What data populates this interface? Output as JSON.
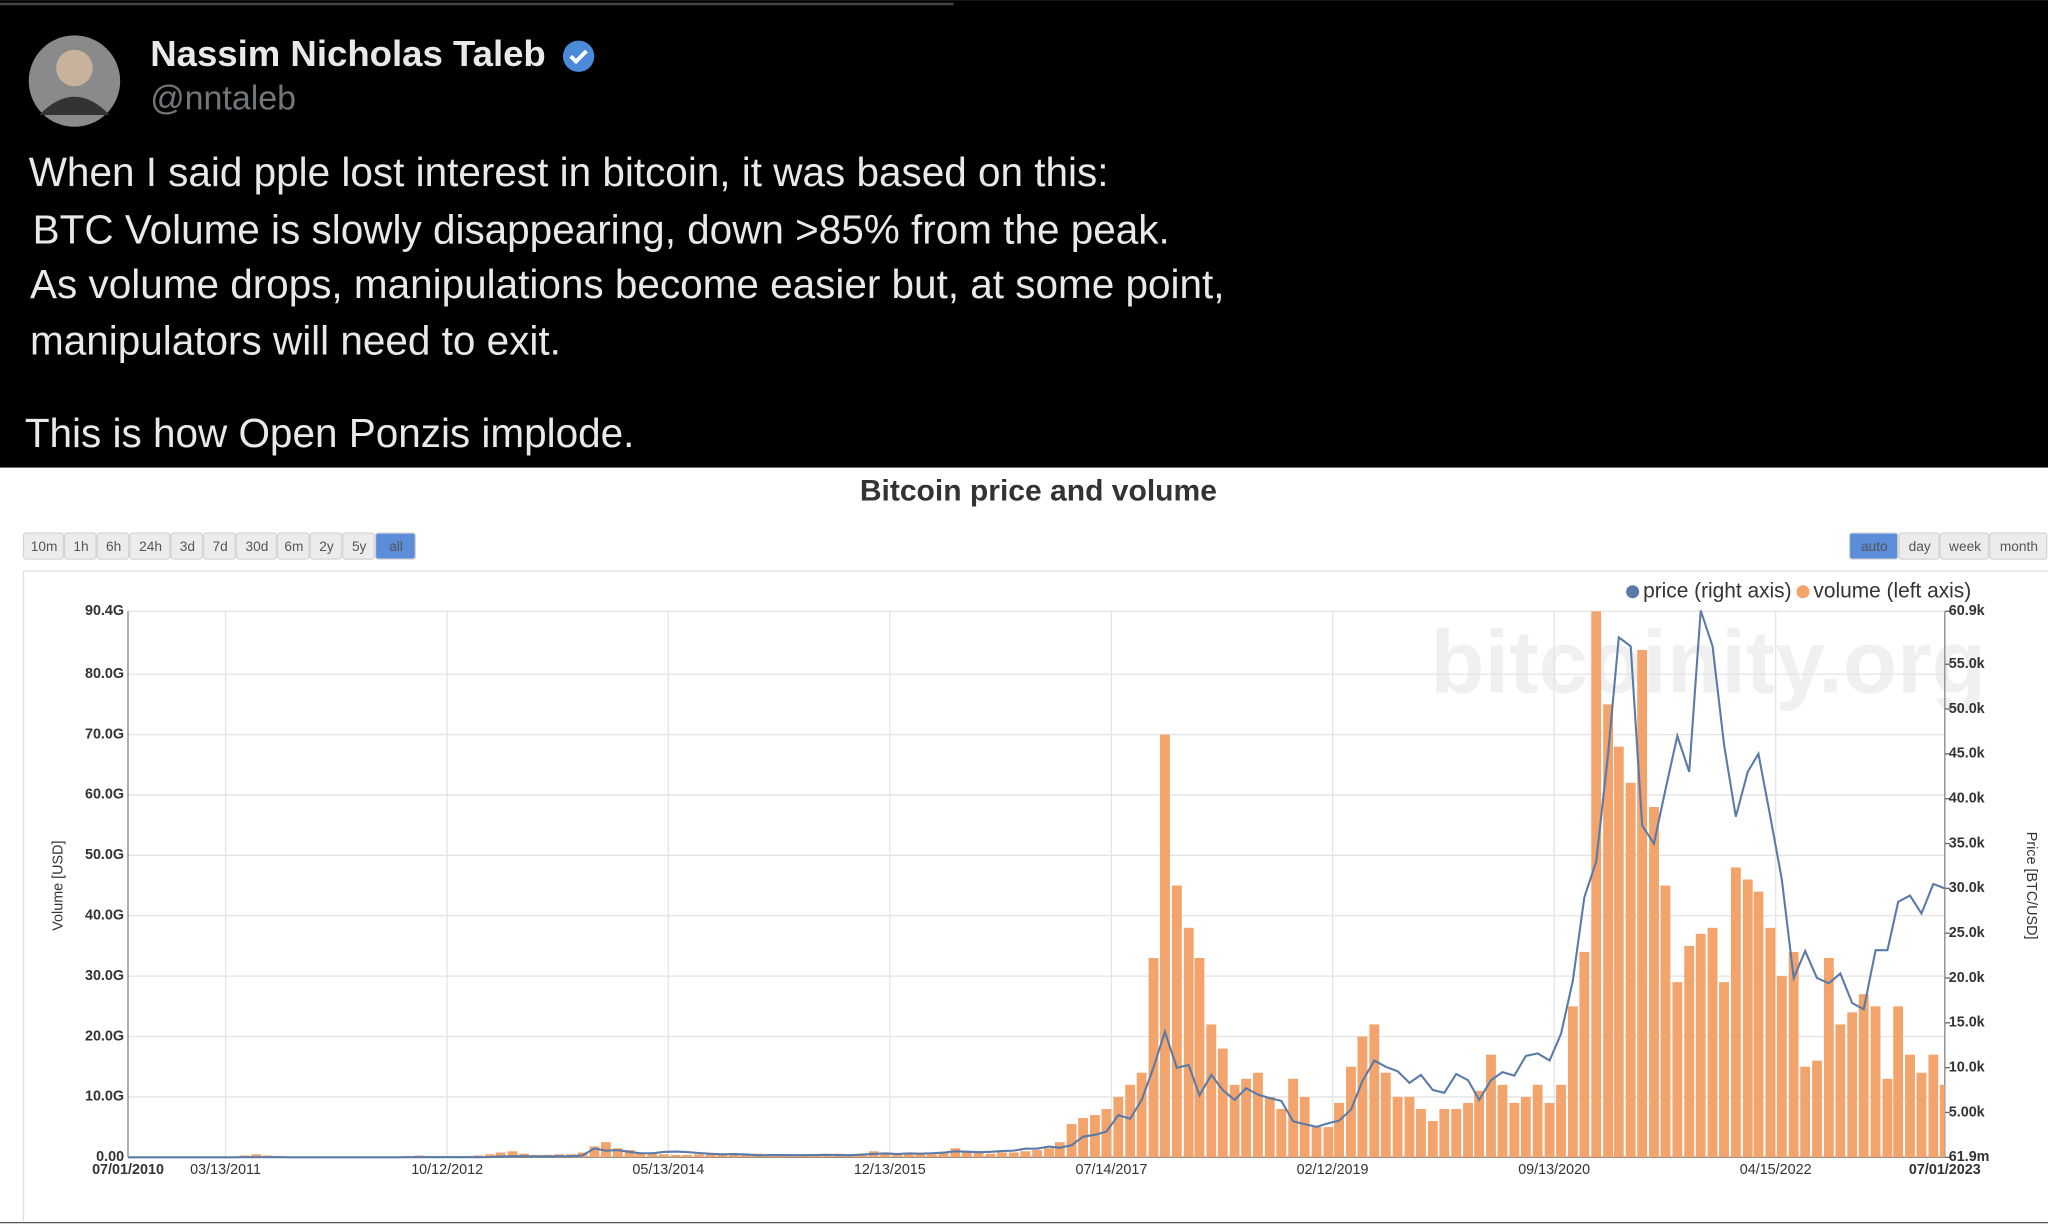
{
  "tweet": {
    "name": "Nassim Nicholas Taleb",
    "handle": "@nntaleb",
    "text": [
      "When I said pple lost interest in bitcoin, it was based on this:",
      "BTC Volume is slowly  disappearing, down >85% from the peak.",
      "As volume drops, manipulations become easier but, at some point,",
      "manipulators will need to exit.",
      "This is how Open Ponzis implode."
    ]
  },
  "chart_data": {
    "type": "bar",
    "title": "Bitcoin price and volume",
    "watermark": "bitcoinity.org",
    "range_buttons": [
      "10m",
      "1h",
      "6h",
      "24h",
      "3d",
      "7d",
      "30d",
      "6m",
      "2y",
      "5y",
      "all"
    ],
    "range_selected": 10,
    "period_buttons": [
      "auto",
      "day",
      "week",
      "month"
    ],
    "period_selected": 0,
    "ylabel": "Volume [USD]",
    "y2label": "Price [BTC/USD]",
    "x": [
      "2010-07",
      "2010-08",
      "2010-09",
      "2010-10",
      "2010-11",
      "2010-12",
      "2011-01",
      "2011-02",
      "2011-03",
      "2011-04",
      "2011-05",
      "2011-06",
      "2011-07",
      "2011-08",
      "2011-09",
      "2011-10",
      "2011-11",
      "2011-12",
      "2012-01",
      "2012-02",
      "2012-03",
      "2012-04",
      "2012-05",
      "2012-06",
      "2012-07",
      "2012-08",
      "2012-09",
      "2012-10",
      "2012-11",
      "2012-12",
      "2013-01",
      "2013-02",
      "2013-03",
      "2013-04",
      "2013-05",
      "2013-06",
      "2013-07",
      "2013-08",
      "2013-09",
      "2013-10",
      "2013-11",
      "2013-12",
      "2014-01",
      "2014-02",
      "2014-03",
      "2014-04",
      "2014-05",
      "2014-06",
      "2014-07",
      "2014-08",
      "2014-09",
      "2014-10",
      "2014-11",
      "2014-12",
      "2015-01",
      "2015-02",
      "2015-03",
      "2015-04",
      "2015-05",
      "2015-06",
      "2015-07",
      "2015-08",
      "2015-09",
      "2015-10",
      "2015-11",
      "2015-12",
      "2016-01",
      "2016-02",
      "2016-03",
      "2016-04",
      "2016-05",
      "2016-06",
      "2016-07",
      "2016-08",
      "2016-09",
      "2016-10",
      "2016-11",
      "2016-12",
      "2017-01",
      "2017-02",
      "2017-03",
      "2017-04",
      "2017-05",
      "2017-06",
      "2017-07",
      "2017-08",
      "2017-09",
      "2017-10",
      "2017-11",
      "2017-12",
      "2018-01",
      "2018-02",
      "2018-03",
      "2018-04",
      "2018-05",
      "2018-06",
      "2018-07",
      "2018-08",
      "2018-09",
      "2018-10",
      "2018-11",
      "2018-12",
      "2019-01",
      "2019-02",
      "2019-03",
      "2019-04",
      "2019-05",
      "2019-06",
      "2019-07",
      "2019-08",
      "2019-09",
      "2019-10",
      "2019-11",
      "2019-12",
      "2020-01",
      "2020-02",
      "2020-03",
      "2020-04",
      "2020-05",
      "2020-06",
      "2020-07",
      "2020-08",
      "2020-09",
      "2020-10",
      "2020-11",
      "2020-12",
      "2021-01",
      "2021-02",
      "2021-03",
      "2021-04",
      "2021-05",
      "2021-06",
      "2021-07",
      "2021-08",
      "2021-09",
      "2021-10",
      "2021-11",
      "2021-12",
      "2022-01",
      "2022-02",
      "2022-03",
      "2022-04",
      "2022-05",
      "2022-06",
      "2022-07",
      "2022-08",
      "2022-09",
      "2022-10",
      "2022-11",
      "2022-12",
      "2023-01",
      "2023-02",
      "2023-03",
      "2023-04",
      "2023-05",
      "2023-06",
      "2023-07"
    ],
    "series": [
      {
        "name": "price (right axis)",
        "type": "line",
        "axis": "y2",
        "color": "#5a7aa8",
        "values": [
          0.07,
          0.07,
          0.06,
          0.1,
          0.2,
          0.3,
          0.3,
          0.9,
          0.9,
          0.8,
          8,
          17,
          14,
          10,
          5,
          3,
          3,
          4,
          6,
          5,
          5,
          5,
          5,
          6,
          9,
          10,
          12,
          11,
          12,
          13,
          20,
          30,
          90,
          130,
          120,
          100,
          100,
          110,
          130,
          200,
          1000,
          750,
          800,
          600,
          450,
          450,
          600,
          640,
          580,
          480,
          390,
          340,
          370,
          320,
          220,
          250,
          250,
          230,
          230,
          250,
          280,
          230,
          235,
          300,
          380,
          430,
          370,
          440,
          415,
          450,
          530,
          670,
          620,
          575,
          610,
          700,
          740,
          960,
          970,
          1190,
          1070,
          1350,
          2300,
          2500,
          2870,
          4700,
          4300,
          6400,
          10000,
          14000,
          10000,
          10300,
          6900,
          9200,
          7500,
          6400,
          7700,
          7000,
          6600,
          6300,
          4000,
          3700,
          3400,
          3800,
          4100,
          5300,
          8500,
          10800,
          10100,
          9600,
          8300,
          9200,
          7500,
          7200,
          9300,
          8600,
          6400,
          8600,
          9500,
          9100,
          11300,
          11600,
          10800,
          13800,
          19700,
          29000,
          33000,
          45000,
          58000,
          57000,
          37000,
          35000,
          41000,
          47000,
          43000,
          61000,
          57000,
          46000,
          38000,
          43000,
          45000,
          38000,
          31000,
          20000,
          23000,
          20000,
          19400,
          20500,
          17200,
          16500,
          23100,
          23100,
          28500,
          29200,
          27200,
          30500,
          30000
        ]
      },
      {
        "name": "volume (left axis)",
        "type": "bar",
        "color": "#f2a46c",
        "values": [
          10000000.0,
          10000000.0,
          10000000.0,
          20000000.0,
          30000000.0,
          30000000.0,
          50000000.0,
          100000000.0,
          100000000.0,
          100000000.0,
          300000000.0,
          500000000.0,
          300000000.0,
          200000000.0,
          100000000.0,
          100000000.0,
          100000000.0,
          100000000.0,
          100000000.0,
          100000000.0,
          100000000.0,
          100000000.0,
          100000000.0,
          100000000.0,
          200000000.0,
          300000000.0,
          200000000.0,
          200000000.0,
          200000000.0,
          200000000.0,
          300000000.0,
          500000000.0,
          800000000.0,
          1000000000.0,
          600000000.0,
          400000000.0,
          400000000.0,
          500000000.0,
          500000000.0,
          800000000.0,
          1800000000.0,
          2500000000.0,
          1500000000.0,
          1200000000.0,
          800000000.0,
          600000000.0,
          500000000.0,
          400000000.0,
          400000000.0,
          500000000.0,
          600000000.0,
          500000000.0,
          400000000.0,
          500000000.0,
          600000000.0,
          500000000.0,
          400000000.0,
          400000000.0,
          400000000.0,
          400000000.0,
          400000000.0,
          600000000.0,
          400000000.0,
          500000000.0,
          1000000000.0,
          800000000.0,
          600000000.0,
          600000000.0,
          500000000.0,
          500000000.0,
          700000000.0,
          1500000000.0,
          1000000000.0,
          800000000.0,
          600000000.0,
          800000000.0,
          800000000.0,
          1000000000.0,
          1200000000.0,
          1500000000.0,
          2500000000.0,
          5500000000.0,
          6500000000.0,
          7000000000.0,
          8000000000.0,
          10000000000.0,
          12000000000.0,
          14000000000.0,
          33000000000.0,
          70000000000.0,
          45000000000.0,
          38000000000.0,
          33000000000.0,
          22000000000.0,
          18000000000.0,
          12000000000.0,
          13000000000.0,
          14000000000.0,
          10000000000.0,
          8000000000.0,
          13000000000.0,
          10000000000.0,
          5000000000.0,
          5000000000.0,
          9000000000.0,
          15000000000.0,
          20000000000.0,
          22000000000.0,
          14000000000.0,
          10000000000.0,
          10000000000.0,
          8000000000.0,
          6000000000.0,
          8000000000.0,
          8000000000.0,
          9000000000.0,
          11000000000.0,
          17000000000.0,
          12000000000.0,
          9000000000.0,
          10000000000.0,
          12000000000.0,
          9000000000.0,
          12000000000.0,
          25000000000.0,
          34000000000.0,
          90400000000.0,
          75000000000.0,
          68000000000.0,
          62000000000.0,
          84000000000.0,
          58000000000.0,
          45000000000.0,
          29000000000.0,
          35000000000.0,
          37000000000.0,
          38000000000.0,
          29000000000.0,
          48000000000.0,
          46000000000.0,
          44000000000.0,
          38000000000.0,
          30000000000.0,
          34000000000.0,
          15000000000.0,
          16000000000.0,
          33000000000.0,
          22000000000.0,
          24000000000.0,
          27000000000.0,
          25000000000.0,
          13000000000.0,
          25000000000.0,
          17000000000.0,
          14000000000.0,
          17000000000.0,
          12000000000.0
        ]
      }
    ],
    "xlim": [
      "2010-07-01",
      "2023-07-01"
    ],
    "xticks": [
      {
        "value": "2010-07-01",
        "label": "07/01/2010"
      },
      {
        "value": "2011-03-13",
        "label": "03/13/2011"
      },
      {
        "value": "2012-10-12",
        "label": "10/12/2012"
      },
      {
        "value": "2014-05-13",
        "label": "05/13/2014"
      },
      {
        "value": "2015-12-13",
        "label": "12/13/2015"
      },
      {
        "value": "2017-07-14",
        "label": "07/14/2017"
      },
      {
        "value": "2019-02-12",
        "label": "02/12/2019"
      },
      {
        "value": "2020-09-13",
        "label": "09/13/2020"
      },
      {
        "value": "2022-04-15",
        "label": "04/15/2022"
      },
      {
        "value": "2023-07-01",
        "label": "07/01/2023"
      }
    ],
    "ylim": [
      0,
      90400000000.0
    ],
    "yticks": [
      {
        "value": 0,
        "label": "0.00"
      },
      {
        "value": 10000000000.0,
        "label": "10.0G"
      },
      {
        "value": 20000000000.0,
        "label": "20.0G"
      },
      {
        "value": 30000000000.0,
        "label": "30.0G"
      },
      {
        "value": 40000000000.0,
        "label": "40.0G"
      },
      {
        "value": 50000000000.0,
        "label": "50.0G"
      },
      {
        "value": 60000000000.0,
        "label": "60.0G"
      },
      {
        "value": 70000000000.0,
        "label": "70.0G"
      },
      {
        "value": 80000000000.0,
        "label": "80.0G"
      },
      {
        "value": 90400000000.0,
        "label": "90.4G"
      }
    ],
    "y2lim": [
      0.0619,
      60900
    ],
    "y2ticks": [
      {
        "value": 0.0619,
        "label": "61.9m"
      },
      {
        "value": 5000,
        "label": "5.00k"
      },
      {
        "value": 10000,
        "label": "10.0k"
      },
      {
        "value": 15000,
        "label": "15.0k"
      },
      {
        "value": 20000,
        "label": "20.0k"
      },
      {
        "value": 25000,
        "label": "25.0k"
      },
      {
        "value": 30000,
        "label": "30.0k"
      },
      {
        "value": 35000,
        "label": "35.0k"
      },
      {
        "value": 40000,
        "label": "40.0k"
      },
      {
        "value": 45000,
        "label": "45.0k"
      },
      {
        "value": 50000,
        "label": "50.0k"
      },
      {
        "value": 55000,
        "label": "55.0k"
      },
      {
        "value": 60900,
        "label": "60.9k"
      }
    ],
    "grid": true,
    "legend": "top-right"
  }
}
